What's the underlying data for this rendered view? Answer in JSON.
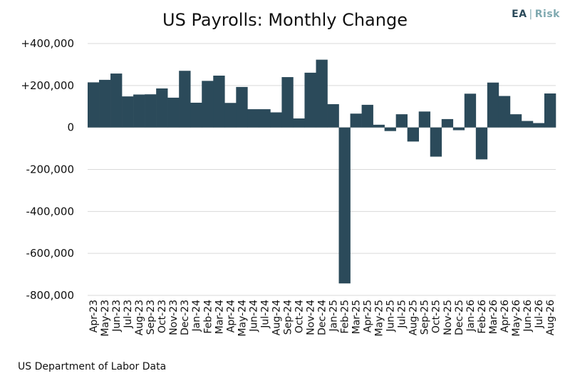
{
  "header": {
    "title": "US Payrolls: Monthly Change"
  },
  "brand": {
    "ea": "EA",
    "separator": "|",
    "risk": "Risk"
  },
  "footer": {
    "source": "US Department of Labor Data"
  },
  "colors": {
    "bar": "#2b4a5a",
    "grid": "#d9d9d9",
    "text": "#111111"
  },
  "chart_data": {
    "type": "bar",
    "title": "US Payrolls: Monthly Change",
    "xlabel": "",
    "ylabel": "",
    "ylim": [
      -800000,
      400000
    ],
    "yticks": [
      400000,
      200000,
      0,
      -200000,
      -400000,
      -600000,
      -800000
    ],
    "ytick_labels": [
      "+400,000",
      "+200,000",
      "0",
      "-200,000",
      "-400,000",
      "-600,000",
      "-800,000"
    ],
    "grid": true,
    "legend": "none",
    "categories": [
      "Apr-23",
      "May-23",
      "Jun-23",
      "Jul-23",
      "Aug-23",
      "Sep-23",
      "Oct-23",
      "Nov-23",
      "Dec-23",
      "Jan-24",
      "Feb-24",
      "Mar-24",
      "Apr-24",
      "May-24",
      "Jun-24",
      "Jul-24",
      "Aug-24",
      "Sep-24",
      "Oct-24",
      "Nov-24",
      "Dec-24",
      "Jan-25",
      "Feb-25",
      "Mar-25",
      "Apr-25",
      "May-25",
      "Jun-25",
      "Jul-25",
      "Aug-25",
      "Sep-25",
      "Oct-25",
      "Nov-25",
      "Dec-25",
      "Jan-26",
      "Feb-26",
      "Mar-26",
      "Apr-26",
      "May-26",
      "Jun-26",
      "Jul-26",
      "Aug-26"
    ],
    "values": [
      215000,
      227000,
      257000,
      148000,
      157000,
      158000,
      186000,
      142000,
      270000,
      118000,
      222000,
      247000,
      117000,
      193000,
      87000,
      87000,
      72000,
      240000,
      43000,
      261000,
      323000,
      111000,
      -743000,
      66000,
      108000,
      13000,
      -17000,
      63000,
      -67000,
      76000,
      -139000,
      40000,
      -13000,
      161000,
      -152000,
      214000,
      150000,
      63000,
      31000,
      21000,
      162000
    ]
  }
}
